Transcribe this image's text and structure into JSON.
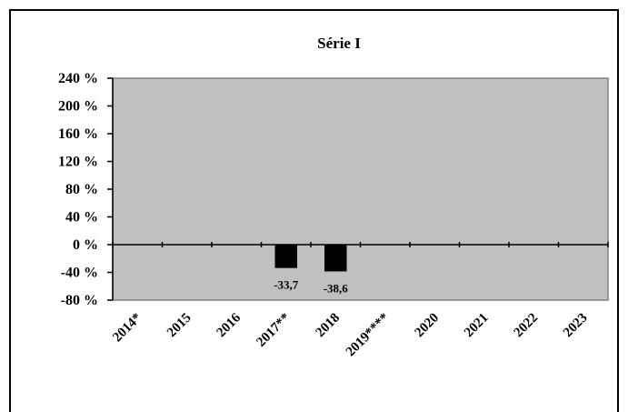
{
  "chart_data": {
    "type": "bar",
    "title": "Série I",
    "xlabel": "",
    "ylabel": "",
    "categories": [
      "2014*",
      "2015",
      "2016",
      "2017**",
      "2018",
      "2019****",
      "2020",
      "2021",
      "2022",
      "2023"
    ],
    "values": [
      null,
      null,
      null,
      -33.7,
      -38.6,
      null,
      null,
      null,
      null,
      null
    ],
    "data_labels": [
      "",
      "",
      "",
      "-33,7",
      "-38,6",
      "",
      "",
      "",
      "",
      ""
    ],
    "yticks": [
      240,
      200,
      160,
      120,
      80,
      40,
      0,
      -40,
      -80
    ],
    "ytick_labels": [
      "240 %",
      "200 %",
      "160 %",
      "120 %",
      "80 %",
      "40 %",
      "0 %",
      "-40 %",
      "-80 %"
    ],
    "ylim": [
      -80,
      240
    ],
    "grid": false,
    "legend": "none",
    "colors": {
      "plot_background": "#c0c0c0",
      "bar": "#000000",
      "axis": "#000000"
    }
  }
}
